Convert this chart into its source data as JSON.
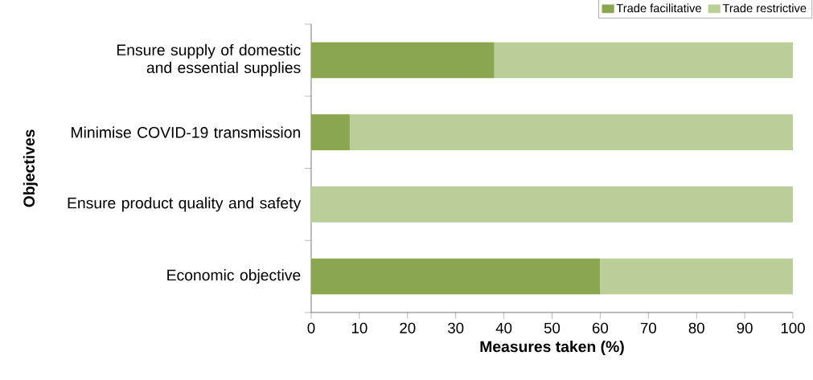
{
  "chart_data": {
    "type": "bar",
    "orientation": "horizontal",
    "stacked": true,
    "xlabel": "Measures taken (%)",
    "ylabel": "Objectives",
    "categories": [
      "Ensure supply of domestic and essential supplies",
      "Minimise COVID-19 transmission",
      "Ensure product quality and safety",
      "Economic objective"
    ],
    "series": [
      {
        "name": "Trade facilitative",
        "color": "#8aa64f",
        "values": [
          38,
          8,
          0,
          60
        ]
      },
      {
        "name": "Trade restrictive",
        "color": "#bacf98",
        "values": [
          62,
          92,
          100,
          40
        ]
      }
    ],
    "xlim": [
      0,
      100
    ],
    "xticks": [
      0,
      10,
      20,
      30,
      40,
      50,
      60,
      70,
      80,
      90,
      100
    ],
    "grid": false,
    "legend": "top right"
  }
}
